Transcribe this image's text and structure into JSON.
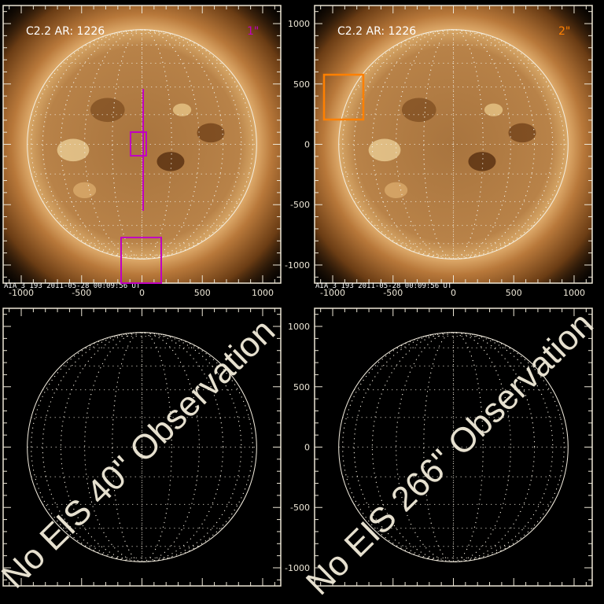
{
  "axis": {
    "x_ticks": [
      -1000,
      -500,
      0,
      500,
      1000
    ],
    "y_ticks": [
      1000,
      500,
      0,
      -500,
      -1000
    ],
    "range": [
      -1150,
      1150
    ]
  },
  "colors": {
    "frame": "#ece6d6",
    "magenta": "#c000c0",
    "orange": "#ff8000"
  },
  "panels": [
    {
      "title": "C2.2 AR: 1226",
      "label": "1\"",
      "label_color": "#c000c0",
      "stamp": "AIA_3  193   2011-05-28  00:09:56 UT",
      "image": "sun-euv"
    },
    {
      "title": "C2.2 AR: 1226",
      "label": "2\"",
      "label_color": "#ff8000",
      "stamp": "AIA_3  193   2011-05-28  00:09:56 UT",
      "image": "sun-euv"
    },
    {
      "overlay": "No EIS 40\" Observation",
      "image": "empty-grid"
    },
    {
      "overlay": "No EIS 266\" Observation",
      "image": "empty-grid"
    }
  ]
}
